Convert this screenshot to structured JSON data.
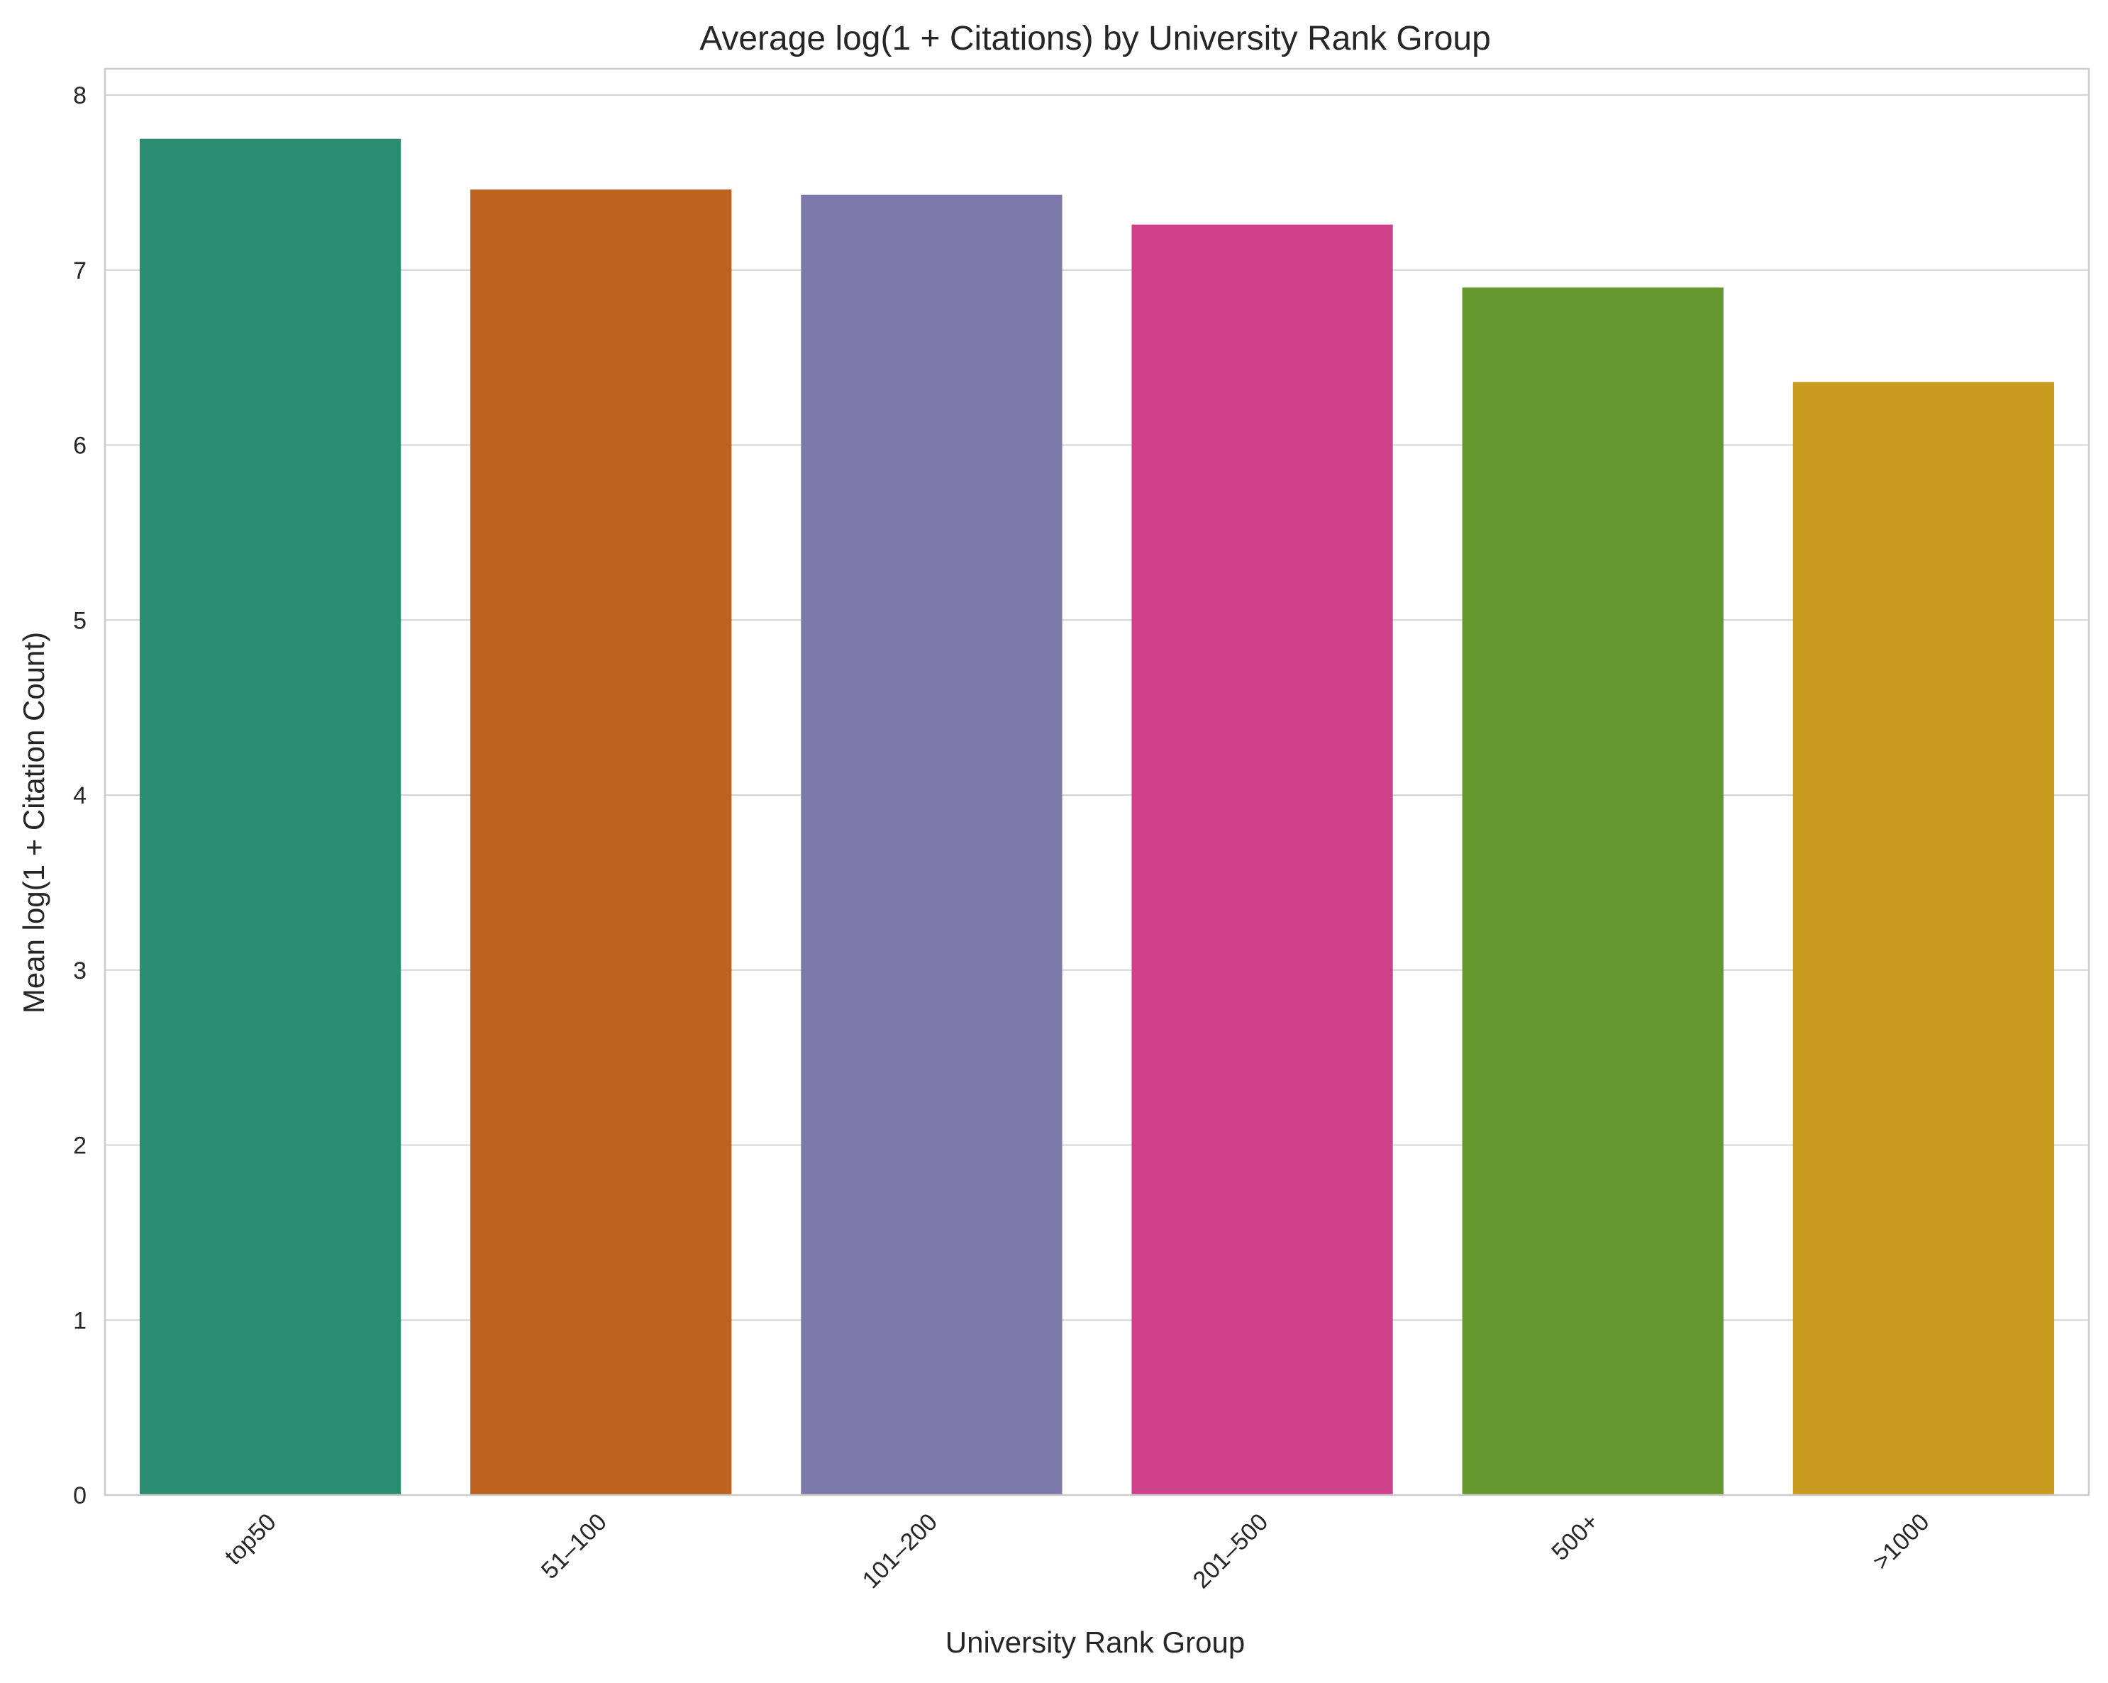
{
  "chart_data": {
    "type": "bar",
    "title": "Average log(1 + Citations) by University Rank Group",
    "xlabel": "University Rank Group",
    "ylabel": "Mean log(1 + Citation Count)",
    "categories": [
      "top50",
      "51–100",
      "101–200",
      "201–500",
      "500+",
      ">1000"
    ],
    "values": [
      7.75,
      7.46,
      7.43,
      7.26,
      6.9,
      6.36
    ],
    "colors": [
      "#2a8c70",
      "#bd621f",
      "#7d79aa",
      "#cf408a",
      "#64972e",
      "#c99c1f"
    ],
    "ylim": [
      0,
      8.15
    ],
    "yticks": [
      0,
      1,
      2,
      3,
      4,
      5,
      6,
      7,
      8
    ],
    "grid": true,
    "grid_axis": "y",
    "legend": false
  }
}
